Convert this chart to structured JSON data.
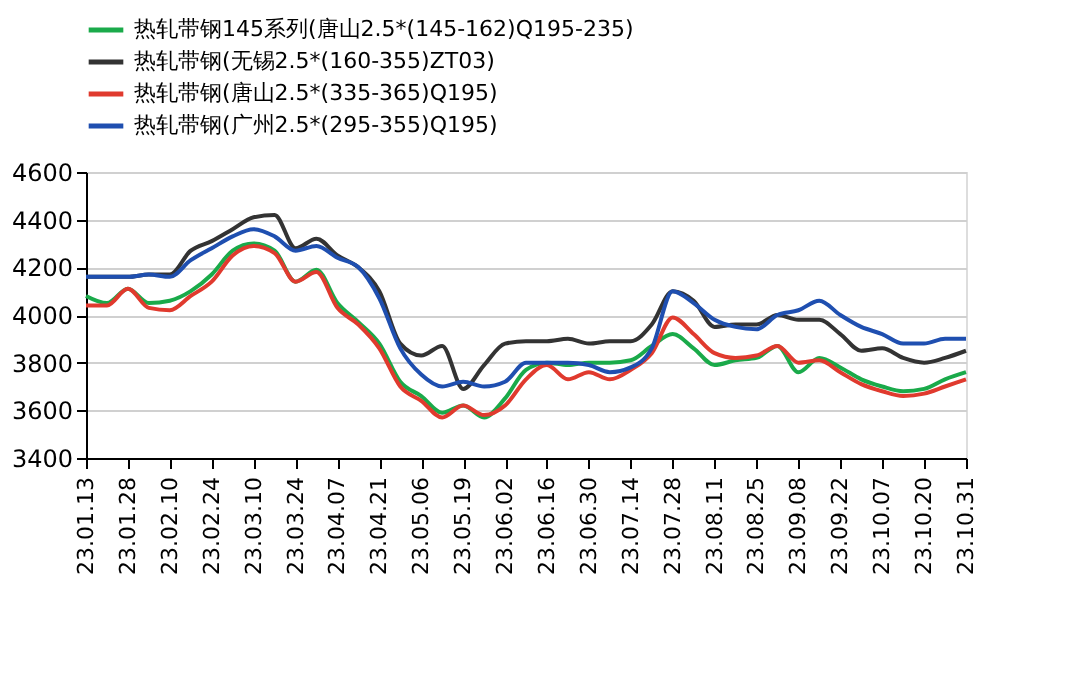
{
  "chart_data": {
    "type": "line",
    "categories": [
      "23.01.13",
      null,
      "23.01.28",
      null,
      "23.02.10",
      null,
      "23.02.24",
      null,
      "23.03.10",
      null,
      "23.03.24",
      null,
      "23.04.07",
      null,
      "23.04.21",
      null,
      "23.05.06",
      null,
      "23.05.19",
      null,
      "23.06.02",
      null,
      "23.06.16",
      null,
      "23.06.30",
      null,
      "23.07.14",
      null,
      "23.07.28",
      null,
      "23.08.11",
      null,
      "23.08.25",
      null,
      "23.09.08",
      null,
      "23.09.22",
      null,
      "23.10.07",
      null,
      "23.10.20",
      null,
      "23.10.31"
    ],
    "series": [
      {
        "name": "热轧带钢145系列(唐山2.5*(145-162)Q195-235)",
        "color": "#1aaa4a",
        "values": [
          4080,
          4050,
          4110,
          4050,
          4060,
          4100,
          4170,
          4270,
          4300,
          4270,
          4140,
          4190,
          4050,
          3970,
          3880,
          3720,
          3660,
          3590,
          3620,
          3570,
          3650,
          3770,
          3800,
          3790,
          3800,
          3800,
          3810,
          3870,
          3920,
          3860,
          3790,
          3810,
          3820,
          3870,
          3760,
          3820,
          3780,
          3730,
          3700,
          3680,
          3690,
          3730,
          3760
        ]
      },
      {
        "name": "热轧带钢(无锡2.5*(160-355)ZT03)",
        "color": "#333333",
        "values": [
          4160,
          4160,
          4160,
          4170,
          4170,
          4270,
          4310,
          4360,
          4410,
          4420,
          4280,
          4320,
          4250,
          4200,
          4100,
          3880,
          3830,
          3870,
          3690,
          3790,
          3880,
          3890,
          3890,
          3900,
          3880,
          3890,
          3890,
          3960,
          4100,
          4060,
          3950,
          3960,
          3960,
          4000,
          3980,
          3980,
          3920,
          3850,
          3860,
          3820,
          3800,
          3820,
          3850
        ]
      },
      {
        "name": "热轧带钢(唐山2.5*(335-365)Q195)",
        "color": "#e03a2e",
        "values": [
          4040,
          4040,
          4110,
          4030,
          4020,
          4080,
          4140,
          4250,
          4290,
          4260,
          4140,
          4180,
          4030,
          3960,
          3860,
          3700,
          3640,
          3570,
          3620,
          3580,
          3620,
          3730,
          3790,
          3730,
          3760,
          3730,
          3770,
          3840,
          3990,
          3920,
          3840,
          3820,
          3830,
          3870,
          3800,
          3810,
          3760,
          3710,
          3680,
          3660,
          3670,
          3700,
          3730
        ]
      },
      {
        "name": "热轧带钢(广州2.5*(295-355)Q195)",
        "color": "#1f4fb0",
        "values": [
          4160,
          4160,
          4160,
          4170,
          4160,
          4230,
          4280,
          4330,
          4360,
          4330,
          4270,
          4290,
          4240,
          4200,
          4070,
          3860,
          3750,
          3700,
          3720,
          3700,
          3720,
          3800,
          3800,
          3800,
          3790,
          3760,
          3780,
          3860,
          4100,
          4050,
          3980,
          3950,
          3940,
          4000,
          4020,
          4060,
          4000,
          3950,
          3920,
          3880,
          3880,
          3900,
          3900
        ]
      }
    ],
    "ylim": [
      3400,
      4600
    ],
    "yticks": [
      3400,
      3600,
      3800,
      4000,
      4200,
      4400,
      4600
    ],
    "grid": "y",
    "legend": "top",
    "marker": "none",
    "line_style": "solid"
  }
}
